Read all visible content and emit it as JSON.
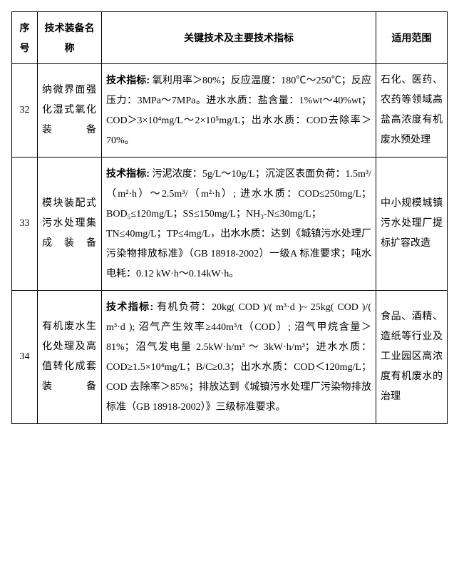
{
  "headers": {
    "seq": "序号",
    "name": "技术装备名称",
    "tech": "关键技术及主要技术指标",
    "scope": "适用范围"
  },
  "label_text": "技术指标:",
  "rows": [
    {
      "seq": "32",
      "name": "纳微界面强化湿式氧化装备",
      "tech_body": " 氧利用率＞80%；反应温度：180℃～250℃；反应压力：3MPa～7MPa。进水水质：盐含量：1%wt～40%wt；COD＞3×10⁴mg/L～2×10⁵mg/L；出水水质：COD去除率＞70%。",
      "scope": "石化、医药、农药等领域高盐高浓度有机废水预处理"
    },
    {
      "seq": "33",
      "name": "模块装配式污水处理集成装备",
      "tech_body": " 污泥浓度：5g/L～10g/L；沉淀区表面负荷：1.5m³/（m²·h）～2.5m³/（m²·h）; 进水水质：COD≤250mg/L；BOD₅≤120mg/L；SS≤150mg/L；NH₃-N≤30mg/L；TN≤40mg/L；TP≤4mg/L，出水水质：达到《城镇污水处理厂污染物排放标准》（GB 18918-2002）一级A 标准要求；吨水电耗：0.12 kW·h～0.14kW·h。",
      "scope": "中小规模城镇污水处理厂提标扩容改造"
    },
    {
      "seq": "34",
      "name": "有机废水生化处理及高值转化成套装备",
      "tech_body": " 有机负荷：20kg( COD )/( m³·d )~ 25kg( COD )/( m³·d ); 沼气产生效率≥440m³/t（COD）; 沼气甲烷含量＞81%；沼气发电量 2.5kW·h/m³ ～ 3kW·h/m³；进水水质：COD≥1.5×10⁴mg/L；B/C≥0.3；出水水质：COD＜120mg/L；COD 去除率＞85%；排放达到《城镇污水处理厂污染物排放标准（GB 18918-2002）》三级标准要求。",
      "scope": "食品、酒精、造纸等行业及工业园区高浓度有机废水的治理"
    }
  ]
}
